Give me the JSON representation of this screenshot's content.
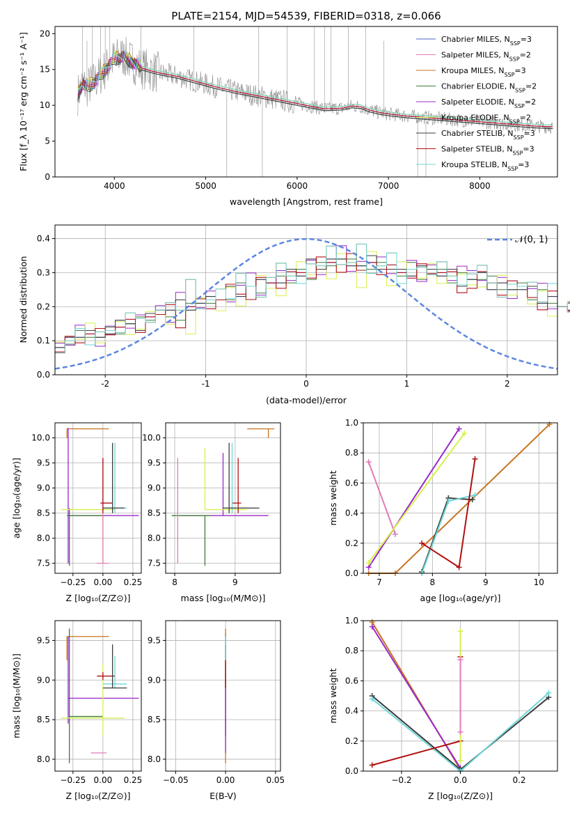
{
  "colors": {
    "chabrier_miles": "#4a67c8",
    "salpeter_miles": "#e07ab8",
    "kroupa_miles": "#c7731f",
    "chabrier_elodie": "#3f7a3a",
    "salpeter_elodie": "#9a27c7",
    "kroupa_elodie": "#d6f04a",
    "chabrier_stelib": "#3c3c3c",
    "salpeter_stelib": "#b01010",
    "kroupa_stelib": "#6fd6d6",
    "spectrum": "#8a8a8a",
    "gaussian": "#5b86e0"
  },
  "chart_data": [
    {
      "id": "spectrum",
      "type": "line",
      "title": "PLATE=2154, MJD=54539, FIBERID=0318, z=0.066",
      "xlabel": "wavelength [Angstrom, rest frame]",
      "ylabel": "Flux [f_λ 10⁻¹⁷ erg cm⁻² s⁻¹ A⁻¹]",
      "xlim": [
        3350,
        8850
      ],
      "ylim": [
        0,
        21
      ],
      "xticks": [
        4000,
        5000,
        6000,
        7000,
        8000
      ],
      "yticks": [
        0,
        5,
        10,
        15,
        20
      ],
      "grid": false,
      "legend": "upper-right",
      "legend_entries": [
        {
          "label": "Chabrier MILES, N",
          "sub": "SSP",
          "suffix": "=3"
        },
        {
          "label": "Salpeter MILES, N",
          "sub": "SSP",
          "suffix": "=2"
        },
        {
          "label": "Kroupa MILES, N",
          "sub": "SSP",
          "suffix": "=3"
        },
        {
          "label": "Chabrier ELODIE, N",
          "sub": "SSP",
          "suffix": "=2"
        },
        {
          "label": "Salpeter ELODIE, N",
          "sub": "SSP",
          "suffix": "=2"
        },
        {
          "label": "Kroupa ELODIE, N",
          "sub": "SSP",
          "suffix": "=2"
        },
        {
          "label": "Chabrier STELIB, N",
          "sub": "SSP",
          "suffix": "=3"
        },
        {
          "label": "Salpeter STELIB, N",
          "sub": "SSP",
          "suffix": "=3"
        },
        {
          "label": "Kroupa STELIB, N",
          "sub": "SSP",
          "suffix": "=3"
        }
      ],
      "continuum_x": [
        3600,
        3650,
        3700,
        3800,
        3900,
        4000,
        4100,
        4200,
        4300,
        4400,
        4500,
        4700,
        4900,
        5100,
        5300,
        5500,
        5700,
        5900,
        6100,
        6300,
        6500,
        6600,
        6700,
        6800,
        6900,
        7000,
        7200,
        7400,
        7600,
        7800,
        8000,
        8200,
        8400,
        8600,
        8800
      ],
      "continuum_y": [
        11.5,
        13.0,
        12.5,
        13.5,
        15.0,
        16.5,
        16.8,
        16.0,
        15.2,
        14.8,
        14.5,
        14.0,
        13.3,
        12.6,
        12.0,
        11.5,
        11.0,
        10.5,
        10.0,
        9.5,
        9.6,
        9.9,
        9.8,
        9.3,
        9.0,
        8.8,
        8.5,
        8.3,
        8.1,
        7.9,
        7.7,
        7.5,
        7.3,
        7.1,
        7.0
      ],
      "noisy_series_note": "",
      "spike_x": [
        3650,
        3700,
        3760,
        3850,
        3900,
        3950,
        4070,
        4110,
        4290,
        4870,
        5230,
        5580,
        5620,
        5890,
        6190,
        6300,
        6370,
        6560,
        6750,
        6950,
        7320,
        7410
      ],
      "spike_y": [
        21,
        19,
        21,
        21,
        21,
        21,
        19,
        18.5,
        21,
        21,
        0,
        21,
        0,
        21,
        21,
        21,
        21,
        21,
        21,
        19,
        0,
        0
      ]
    },
    {
      "id": "residuals",
      "type": "line",
      "xlabel": "(data-model)/error",
      "ylabel": "Normed distribution",
      "xlim": [
        -2.5,
        2.5
      ],
      "ylim": [
        0,
        0.44
      ],
      "xticks": [
        -2,
        -1,
        0,
        1,
        2
      ],
      "yticks": [
        0.0,
        0.1,
        0.2,
        0.3,
        0.4
      ],
      "grid": true,
      "legend": "upper-right",
      "gaussian_label": "𝒩(0, 1)",
      "bin_width": 0.1,
      "bin_start": -2.5,
      "hist_template": [
        0.08,
        0.1,
        0.12,
        0.12,
        0.11,
        0.13,
        0.14,
        0.15,
        0.15,
        0.17,
        0.19,
        0.18,
        0.19,
        0.2,
        0.21,
        0.22,
        0.22,
        0.24,
        0.25,
        0.26,
        0.26,
        0.27,
        0.28,
        0.29,
        0.3,
        0.31,
        0.32,
        0.33,
        0.34,
        0.33,
        0.32,
        0.33,
        0.32,
        0.31,
        0.3,
        0.31,
        0.3,
        0.31,
        0.3,
        0.29,
        0.28,
        0.28,
        0.29,
        0.27,
        0.26,
        0.25,
        0.26,
        0.24,
        0.23,
        0.22,
        0.2,
        0.2,
        0.19,
        0.17,
        0.16,
        0.16,
        0.15,
        0.14,
        0.13,
        0.13,
        0.12,
        0.12,
        0.11,
        0.1,
        0.09,
        0.09,
        0.08,
        0.07,
        0.06,
        0.06,
        0.05,
        0.05,
        0.04,
        0.04,
        0.04
      ],
      "hist_variations": [
        [
          0,
          0.01,
          -0.01,
          0.01,
          0,
          -0.01,
          0.02,
          0,
          -0.02,
          0.01,
          0,
          0.01,
          0.03,
          -0.01,
          0,
          0.01,
          0,
          0.02,
          -0.02,
          0,
          0.02,
          0,
          -0.01,
          0.02,
          -0.01,
          0.03,
          -0.01,
          0.01,
          0,
          -0.01,
          0,
          0.02,
          -0.01,
          0,
          0.01,
          -0.02,
          0.02,
          0,
          -0.01,
          0.02,
          -0.02,
          0,
          0.01,
          -0.02,
          0.01,
          0,
          -0.01,
          0.02,
          -0.02,
          0.01,
          0,
          -0.01,
          0.02,
          -0.01,
          0,
          0.01,
          -0.01,
          0,
          0.02,
          -0.01,
          0,
          0.01,
          -0.02,
          0.01,
          0,
          0.01,
          -0.01,
          0,
          0.01,
          -0.01,
          0,
          0.01,
          0,
          -0.01,
          0
        ],
        [
          0.01,
          -0.01,
          0.02,
          0,
          -0.02,
          0.01,
          0,
          -0.01,
          0.02,
          0,
          0.01,
          -0.02,
          0.04,
          0,
          -0.01,
          0.02,
          0,
          -0.02,
          0.01,
          0.03,
          -0.02,
          0,
          0.02,
          -0.01,
          0,
          0.02,
          -0.02,
          0,
          0.03,
          -0.02,
          0.01,
          0,
          0.02,
          -0.01,
          0,
          0.02,
          -0.02,
          0.01,
          0,
          -0.01,
          0.03,
          0.02,
          -0.01,
          0,
          0.02,
          -0.02,
          0,
          0.01,
          0.03,
          -0.02,
          0,
          0.01,
          -0.01,
          0.02,
          0,
          -0.02,
          0.01,
          0,
          -0.01,
          0.02,
          0,
          -0.01,
          0.01,
          0,
          -0.01,
          0.02,
          0,
          -0.01,
          0,
          0.01,
          -0.01,
          0,
          0.01,
          0,
          0
        ],
        [
          -0.01,
          0,
          0.01,
          -0.02,
          0.01,
          0,
          -0.01,
          0.02,
          0.01,
          -0.01,
          0,
          0.02,
          0,
          0.05,
          -0.01,
          0,
          0.02,
          -0.01,
          0.03,
          0,
          -0.02,
          0.01,
          0.03,
          0,
          -0.02,
          0.01,
          0,
          0.03,
          -0.01,
          0,
          0.04,
          -0.02,
          0,
          0.03,
          -0.02,
          0,
          0.01,
          -0.01,
          0.02,
          0,
          -0.01,
          0.01,
          0.02,
          0,
          -0.02,
          0.01,
          0,
          0.02,
          -0.01,
          0.03,
          0,
          -0.01,
          0.02,
          0,
          0.01,
          -0.01,
          0,
          0.02,
          0.01,
          -0.01,
          0,
          0.02,
          0,
          -0.01,
          0.02,
          0,
          -0.02,
          0.01,
          0,
          0,
          0.01,
          -0.01,
          0,
          0.01,
          0
        ]
      ]
    },
    {
      "id": "age-vs-Z",
      "type": "scatter",
      "xlabel": "Z [log₁₀(Z/Z⊙)]",
      "ylabel": "age  [log₁₀(age/yr)]",
      "xlim": [
        -0.4,
        0.32
      ],
      "ylim": [
        7.3,
        10.3
      ],
      "xticks": [
        -0.25,
        0.0,
        0.25
      ],
      "xticklabels": [
        "−0.25",
        "0.00",
        "0.25"
      ],
      "yticks": [
        7.5,
        8.0,
        8.5,
        9.0,
        9.5,
        10.0
      ],
      "grid": true
    },
    {
      "id": "age-vs-mass",
      "type": "scatter",
      "xlabel": "mass [log₁₀(M/M⊙)]",
      "xlim": [
        7.85,
        9.75
      ],
      "ylim": [
        7.3,
        10.3
      ],
      "xticks": [
        8,
        9
      ],
      "yticks": [
        7.5,
        8.0,
        8.5,
        9.0,
        9.5,
        10.0
      ],
      "grid": true
    },
    {
      "id": "weight-vs-age",
      "type": "line",
      "xlabel": "age  [log₁₀(age/yr)]",
      "ylabel": "mass weight",
      "xlim": [
        6.7,
        10.35
      ],
      "ylim": [
        0,
        1
      ],
      "xticks": [
        7,
        8,
        9,
        10
      ],
      "yticks": [
        0.0,
        0.2,
        0.4,
        0.6,
        0.8,
        1.0
      ],
      "grid": true,
      "series": [
        {
          "color_key": "salpeter_miles",
          "x": [
            6.8,
            7.3
          ],
          "y": [
            0.74,
            0.26
          ]
        },
        {
          "color_key": "salpeter_elodie",
          "x": [
            6.8,
            8.5
          ],
          "y": [
            0.04,
            0.96
          ]
        },
        {
          "color_key": "kroupa_elodie",
          "x": [
            6.8,
            8.6
          ],
          "y": [
            0.07,
            0.93
          ]
        },
        {
          "color_key": "kroupa_miles",
          "x": [
            6.8,
            7.3,
            10.2
          ],
          "y": [
            0.0,
            0.0,
            0.99
          ]
        },
        {
          "color_key": "chabrier_stelib",
          "x": [
            7.8,
            8.3,
            8.75
          ],
          "y": [
            0.01,
            0.5,
            0.49
          ]
        },
        {
          "color_key": "kroupa_stelib",
          "x": [
            7.8,
            8.3,
            8.8
          ],
          "y": [
            0.0,
            0.48,
            0.52
          ]
        },
        {
          "color_key": "salpeter_stelib",
          "x": [
            7.8,
            8.5,
            8.8
          ],
          "y": [
            0.2,
            0.04,
            0.76
          ]
        }
      ]
    },
    {
      "id": "mass-vs-Z",
      "type": "scatter",
      "xlabel": "Z [log₁₀(Z/Z⊙)]",
      "ylabel": "mass [log₁₀(M/M⊙)]",
      "xlim": [
        -0.4,
        0.32
      ],
      "ylim": [
        7.85,
        9.75
      ],
      "xticks": [
        -0.25,
        0.0,
        0.25
      ],
      "xticklabels": [
        "−0.25",
        "0.00",
        "0.25"
      ],
      "yticks": [
        8.0,
        8.5,
        9.0,
        9.5
      ],
      "grid": true
    },
    {
      "id": "mass-vs-ebv",
      "type": "scatter",
      "xlabel": "E(B-V)",
      "xlim": [
        -0.06,
        0.055
      ],
      "ylim": [
        7.85,
        9.75
      ],
      "xticks": [
        -0.05,
        0.0,
        0.05
      ],
      "xticklabels": [
        "−0.05",
        "0.00",
        "0.05"
      ],
      "yticks": [
        8.0,
        8.5,
        9.0,
        9.5
      ],
      "grid": true
    },
    {
      "id": "weight-vs-Z",
      "type": "line",
      "xlabel": "Z [log₁₀(Z/Z⊙)]",
      "ylabel": "mass weight",
      "xlim": [
        -0.33,
        0.33
      ],
      "ylim": [
        0,
        1
      ],
      "xticks": [
        -0.2,
        0.0,
        0.2
      ],
      "xticklabels": [
        "−0.2",
        "0.0",
        "0.2"
      ],
      "yticks": [
        0.0,
        0.2,
        0.4,
        0.6,
        0.8,
        1.0
      ],
      "grid": true,
      "series": [
        {
          "color_key": "kroupa_miles",
          "x": [
            -0.3,
            0.0
          ],
          "y": [
            0.99,
            0.01
          ]
        },
        {
          "color_key": "salpeter_elodie",
          "x": [
            -0.3,
            0.0
          ],
          "y": [
            0.96,
            0.02
          ]
        },
        {
          "color_key": "chabrier_stelib",
          "x": [
            -0.3,
            0.0,
            0.3
          ],
          "y": [
            0.5,
            0.01,
            0.49
          ]
        },
        {
          "color_key": "kroupa_stelib",
          "x": [
            -0.3,
            0.0,
            0.3
          ],
          "y": [
            0.48,
            0.0,
            0.52
          ]
        },
        {
          "color_key": "salpeter_stelib",
          "x": [
            -0.3,
            0.0,
            0.0
          ],
          "y": [
            0.04,
            0.2,
            0.76
          ]
        },
        {
          "color_key": "kroupa_elodie",
          "x": [
            0.0,
            0.0
          ],
          "y": [
            0.07,
            0.93
          ]
        },
        {
          "color_key": "salpeter_miles",
          "x": [
            0.0,
            0.0
          ],
          "y": [
            0.26,
            0.74
          ]
        }
      ]
    }
  ]
}
